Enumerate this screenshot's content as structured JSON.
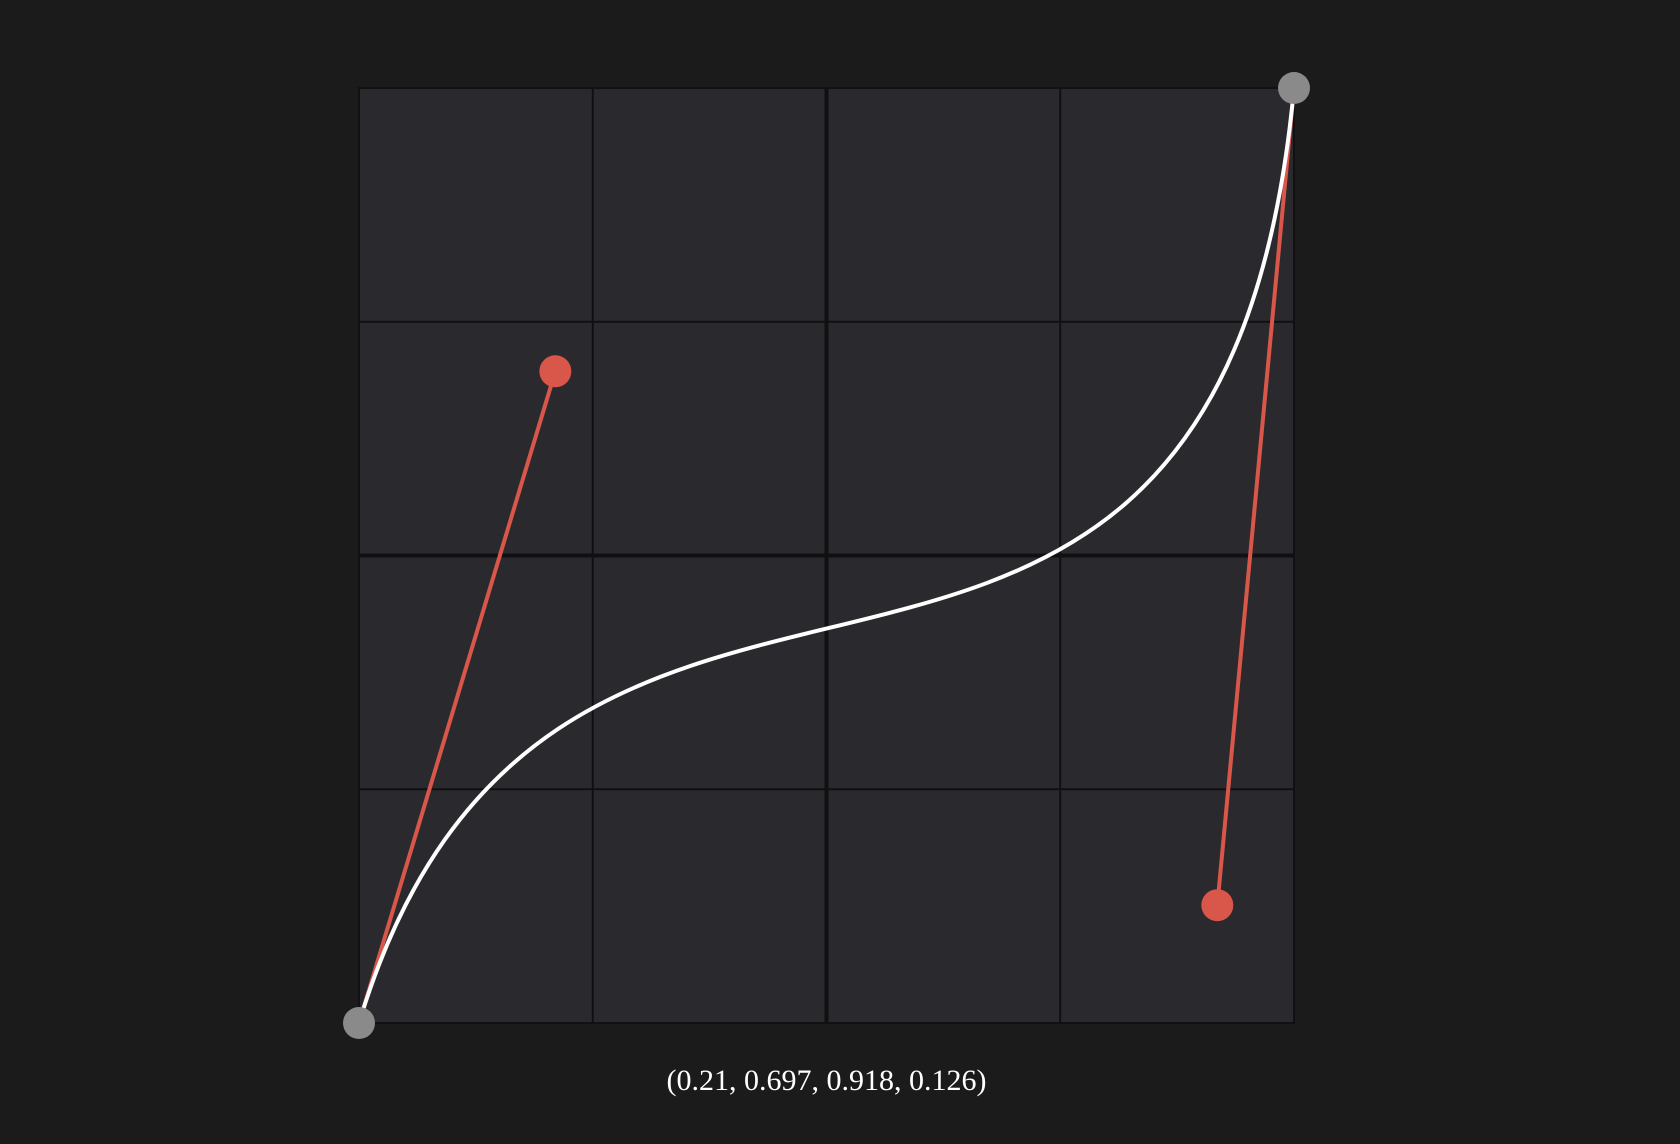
{
  "control_points": [
    0.21,
    0.697,
    0.918,
    0.126
  ],
  "label": "(0.21, 0.697, 0.918, 0.126)"
}
